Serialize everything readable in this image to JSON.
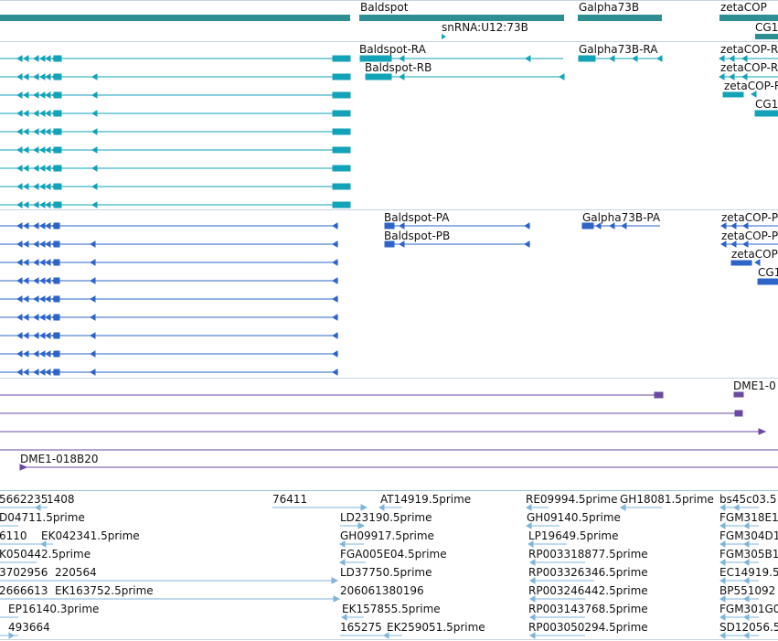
{
  "colors": {
    "gene": "#2d8f93",
    "rna": "#12a3b8",
    "protein": "#2e64c8",
    "repeat": "#6a49a2",
    "est": "#7fb6d8",
    "separator": "#c9d3dc",
    "text": "#111111"
  },
  "gene_track": {
    "labels": [
      "Baldspot",
      "snRNA:U12:73B",
      "Galpha73B",
      "zetaCOP",
      "CG1"
    ]
  },
  "rna_track": {
    "labels": [
      "Baldspot-RA",
      "Baldspot-RB",
      "Galpha73B-RA",
      "zetaCOP-R",
      "zetaCOP-R",
      "zetaCOP-R",
      "CG1"
    ],
    "left_transcript_count": 9
  },
  "protein_track": {
    "labels": [
      "Baldspot-PA",
      "Baldspot-PB",
      "Galpha73B-PA",
      "zetaCOP-P",
      "zetaCOP-P",
      "zetaCOP-",
      "CG1"
    ],
    "left_protein_count": 9
  },
  "repeat_track": {
    "labels": [
      "DME1-0",
      "DME1-018B20"
    ]
  },
  "est_track": {
    "labels": [
      "5662235",
      "1408",
      "76411",
      "AT14919.5prime",
      "RE09994.5prime",
      "GH18081.5prime",
      "bs45c03.5",
      "D04711.5prime",
      "LD23190.5prime",
      "GH09140.5prime",
      "FGM318E1",
      "6110",
      "EK042341.5prime",
      "GH09917.5prime",
      "LP19649.5prime",
      "FGM304D1",
      "K050442.5prime",
      "FGA005E04.5prime",
      "RP003318877.5prime",
      "FGM305B1",
      "3702956",
      "220564",
      "LD37750.5prime",
      "RP003326346.5prime",
      "EC14919.5",
      "2666613",
      "EK163752.5prime",
      "206061380196",
      "RP003246442.5prime",
      "BP551092",
      "EP16140.3prime",
      "EK157855.5prime",
      "RP003143768.5prime",
      "FGM301G0",
      "493664",
      "165275",
      "EK259051.5prime",
      "RP003050294.5prime",
      "SD12056.5"
    ]
  }
}
